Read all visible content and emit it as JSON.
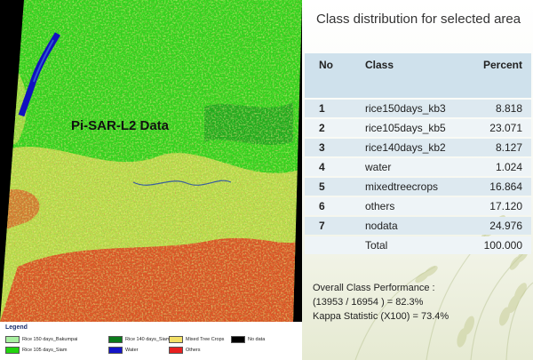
{
  "map": {
    "title": "Pi-SAR-L2 Data",
    "legend": {
      "heading": "Legend",
      "items": [
        {
          "label": "Rice 150 days_Bakumpai",
          "color": "#a8f0a0"
        },
        {
          "label": "Rice 140 days_Siam",
          "color": "#0b7a1a"
        },
        {
          "label": "Mixed Tree Crops",
          "color": "#f3e066"
        },
        {
          "label": "No data",
          "color": "#000000"
        },
        {
          "label": "Rice 105 days_Siam",
          "color": "#22d40f"
        },
        {
          "label": "Water",
          "color": "#1414c8"
        },
        {
          "label": "Others",
          "color": "#e82020"
        }
      ]
    }
  },
  "panel": {
    "title": "Class distribution for selected area",
    "table": {
      "headers": [
        "No",
        "Class",
        "Percent"
      ],
      "rows": [
        {
          "no": "1",
          "class": "rice150days_kb3",
          "percent": "8.818"
        },
        {
          "no": "2",
          "class": "rice105days_kb5",
          "percent": "23.071"
        },
        {
          "no": "3",
          "class": "rice140days_kb2",
          "percent": "8.127"
        },
        {
          "no": "4",
          "class": "water",
          "percent": "1.024"
        },
        {
          "no": "5",
          "class": "mixedtreecrops",
          "percent": "16.864"
        },
        {
          "no": "6",
          "class": "others",
          "percent": "17.120"
        },
        {
          "no": "7",
          "class": "nodata",
          "percent": "24.976"
        }
      ],
      "total_label": "Total",
      "total_value": "100.000"
    },
    "performance": {
      "line1": "Overall Class Performance :",
      "line2": "(13953 / 16954 ) =  82.3%",
      "line3": "Kappa Statistic (X100) =  73.4%"
    }
  }
}
